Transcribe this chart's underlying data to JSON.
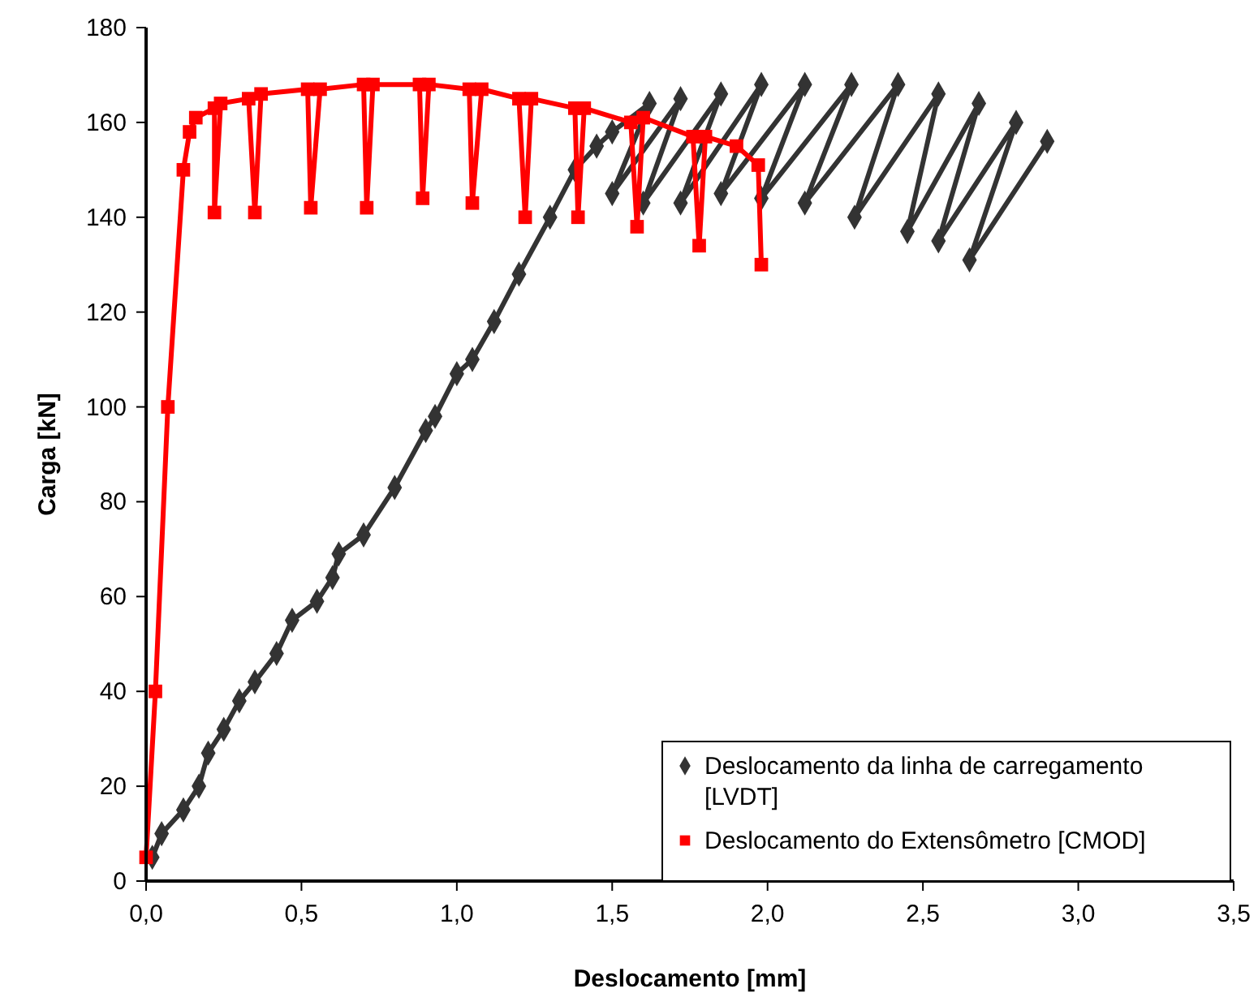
{
  "chart_data": {
    "type": "line",
    "xlabel": "Deslocamento [mm]",
    "ylabel": "Carga [kN]",
    "xlim": [
      0,
      3.5
    ],
    "ylim": [
      0,
      180
    ],
    "xticks": [
      {
        "value": 0,
        "label": "0,0"
      },
      {
        "value": 0.5,
        "label": "0,5"
      },
      {
        "value": 1,
        "label": "1,0"
      },
      {
        "value": 1.5,
        "label": "1,5"
      },
      {
        "value": 2,
        "label": "2,0"
      },
      {
        "value": 2.5,
        "label": "2,5"
      },
      {
        "value": 3,
        "label": "3,0"
      },
      {
        "value": 3.5,
        "label": "3,5"
      }
    ],
    "yticks": [
      0,
      20,
      40,
      60,
      80,
      100,
      120,
      140,
      160,
      180
    ],
    "grid": false,
    "legend": "bottom right",
    "series": [
      {
        "name": "Deslocamento da linha de carregamento [LVDT]",
        "color": "#333333",
        "marker": "diamond",
        "x": [
          0.02,
          0.05,
          0.12,
          0.17,
          0.2,
          0.25,
          0.3,
          0.35,
          0.42,
          0.47,
          0.55,
          0.6,
          0.62,
          0.7,
          0.8,
          0.9,
          0.93,
          1.0,
          1.05,
          1.12,
          1.2,
          1.3,
          1.38,
          1.45,
          1.5,
          1.62,
          1.5,
          1.72,
          1.6,
          1.85,
          1.72,
          1.98,
          1.85,
          2.12,
          1.98,
          2.27,
          2.12,
          2.42,
          2.28,
          2.55,
          2.45,
          2.68,
          2.55,
          2.8,
          2.65,
          2.9
        ],
        "values": [
          5,
          10,
          15,
          20,
          27,
          32,
          38,
          42,
          48,
          55,
          59,
          64,
          69,
          73,
          83,
          95,
          98,
          107,
          110,
          118,
          128,
          140,
          150,
          155,
          158,
          164,
          145,
          165,
          143,
          166,
          143,
          168,
          145,
          168,
          144,
          168,
          143,
          168,
          140,
          166,
          137,
          164,
          135,
          160,
          131,
          156
        ]
      },
      {
        "name": "Deslocamento do Extensômetro [CMOD]",
        "color": "#ff0000",
        "marker": "square",
        "x": [
          0,
          0.03,
          0.07,
          0.12,
          0.14,
          0.16,
          0.22,
          0.22,
          0.24,
          0.33,
          0.35,
          0.37,
          0.52,
          0.53,
          0.56,
          0.7,
          0.71,
          0.73,
          0.88,
          0.89,
          0.91,
          1.04,
          1.05,
          1.08,
          1.2,
          1.22,
          1.24,
          1.38,
          1.39,
          1.41,
          1.56,
          1.58,
          1.6,
          1.76,
          1.78,
          1.8,
          1.9,
          1.97,
          1.98
        ],
        "values": [
          5,
          40,
          100,
          150,
          158,
          161,
          163,
          141,
          164,
          165,
          141,
          166,
          167,
          142,
          167,
          168,
          142,
          168,
          168,
          144,
          168,
          167,
          143,
          167,
          165,
          140,
          165,
          163,
          140,
          163,
          160,
          138,
          161,
          157,
          134,
          157,
          155,
          151,
          130
        ]
      }
    ]
  }
}
